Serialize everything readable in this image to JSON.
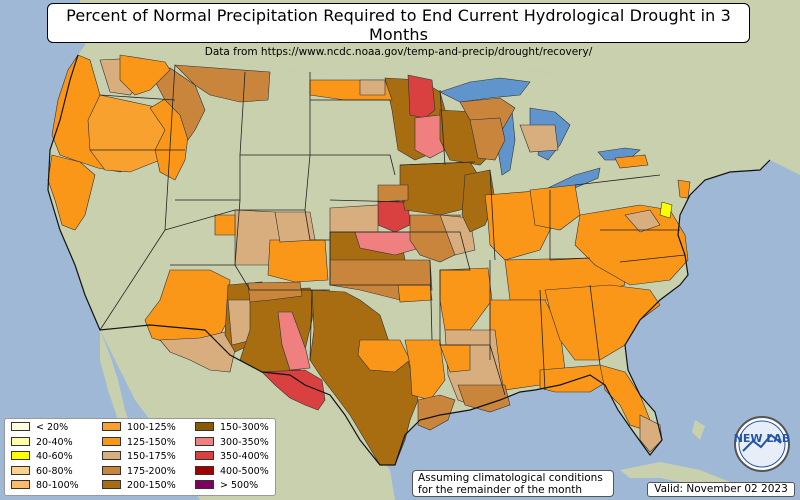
{
  "chart_data": {
    "type": "choropleth map",
    "title": "Percent of Normal Precipitation Required to End Current Hydrological Drought in 3 Months",
    "subtitle": "Data from https://www.ncdc.noaa.gov/temp-and-precip/drought/recovery/",
    "note_line1": "Assuming climatological conditions",
    "note_line2": "for the remainder of the month",
    "valid": "Valid: November 02 2023",
    "logo_text": "NEW LAB",
    "legend": [
      {
        "label": "< 20%",
        "color": "#ffffe0"
      },
      {
        "label": "20-40%",
        "color": "#ffffa8"
      },
      {
        "label": "40-60%",
        "color": "#ffff00"
      },
      {
        "label": "60-80%",
        "color": "#fcd18f"
      },
      {
        "label": "80-100%",
        "color": "#fcbb6a"
      },
      {
        "label": "100-125%",
        "color": "#f9a12f"
      },
      {
        "label": "125-150%",
        "color": "#fb9718"
      },
      {
        "label": "150-175%",
        "color": "#d9ae7e"
      },
      {
        "label": "175-200%",
        "color": "#c9853b"
      },
      {
        "label": "200-150%",
        "color": "#a86d11"
      },
      {
        "label": "150-300%",
        "color": "#8b5a00"
      },
      {
        "label": "300-350%",
        "color": "#f08080"
      },
      {
        "label": "350-400%",
        "color": "#d94040"
      },
      {
        "label": "400-500%",
        "color": "#a00000"
      },
      {
        "label": "> 500%",
        "color": "#800060"
      }
    ],
    "colors": {
      "ocean": "#9fb8d6",
      "land": "#c8d0ae",
      "great_lakes": "#5f95cc",
      "state_border": "#222222"
    }
  }
}
